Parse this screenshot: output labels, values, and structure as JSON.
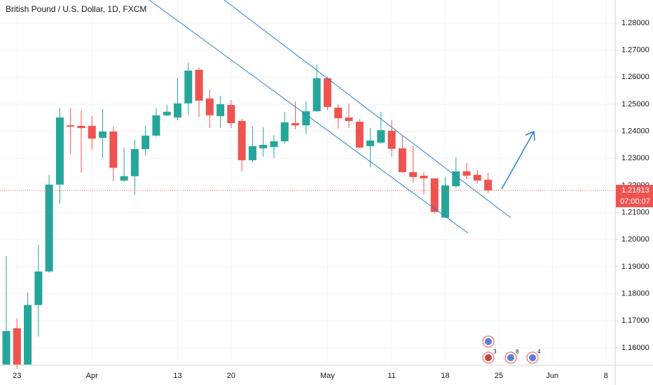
{
  "chart_data": {
    "type": "candlestick",
    "title": "British Pound / U.S. Dollar, 1D, FXCM",
    "categories": [
      null,
      "23",
      null,
      null,
      null,
      null,
      null,
      null,
      "Apr",
      null,
      null,
      null,
      null,
      null,
      null,
      null,
      "13",
      null,
      null,
      null,
      null,
      "20",
      null,
      null,
      null,
      null,
      null,
      null,
      null,
      null,
      "May",
      null,
      null,
      null,
      null,
      null,
      "11",
      null,
      null,
      null,
      null,
      "18",
      null,
      null,
      null,
      null,
      "25",
      null,
      null,
      null,
      null,
      "Jun",
      null,
      null,
      null,
      null,
      "8"
    ],
    "open": [
      1.1538,
      1.1672,
      1.1538,
      1.1758,
      1.1882,
      1.2203,
      1.2422,
      1.242,
      1.242,
      1.2376,
      1.2399,
      1.2218,
      1.2234,
      1.2334,
      1.2384,
      1.2459,
      1.2451,
      1.2503,
      1.2627,
      1.2521,
      1.2456,
      1.2497,
      1.2438,
      1.2293,
      1.2337,
      1.2342,
      1.2363,
      1.243,
      1.2422,
      1.2474,
      1.2596,
      1.2487,
      1.2451,
      1.2435,
      1.2345,
      1.2358,
      1.2402,
      1.2337,
      1.2249,
      1.2236,
      1.2226,
      1.2081,
      1.2197,
      1.2252,
      1.2239,
      1.2221,
      null,
      null,
      null,
      null,
      null,
      null,
      null,
      null,
      null,
      null,
      null
    ],
    "high": [
      1.1939,
      1.1709,
      1.1804,
      1.198,
      1.2239,
      1.2485,
      1.2485,
      1.2477,
      1.2456,
      1.2482,
      1.2417,
      1.234,
      1.2368,
      1.242,
      1.2485,
      1.2497,
      1.2596,
      1.2653,
      1.2635,
      1.2554,
      1.2531,
      1.2515,
      1.2446,
      1.2417,
      1.2415,
      1.2386,
      1.2472,
      1.251,
      1.251,
      1.2647,
      1.2601,
      1.25,
      1.2503,
      1.2446,
      1.2412,
      1.2472,
      1.2441,
      1.2384,
      1.2345,
      1.2249,
      1.2226,
      1.2231,
      1.2303,
      1.2283,
      1.2257,
      1.2247,
      null,
      null,
      null,
      null,
      null,
      null,
      null,
      null,
      null,
      null,
      null
    ],
    "low": [
      1.1538,
      1.1522,
      1.1538,
      1.1641,
      1.1877,
      1.2133,
      1.2316,
      1.2247,
      1.2332,
      1.2301,
      1.2216,
      1.2213,
      1.2166,
      1.2311,
      1.2379,
      1.2456,
      1.2441,
      1.2461,
      1.2453,
      1.2412,
      1.2412,
      1.2412,
      1.2252,
      1.2285,
      1.2306,
      1.2301,
      1.2353,
      1.2407,
      1.2389,
      1.2472,
      1.2477,
      1.241,
      1.2412,
      1.2337,
      1.2267,
      1.2353,
      1.2306,
      1.2247,
      1.221,
      1.2166,
      1.2096,
      1.2081,
      1.2192,
      1.2223,
      1.2208,
      1.2172,
      null,
      null,
      null,
      null,
      null,
      null,
      null,
      null,
      null,
      null,
      null
    ],
    "close": [
      1.1662,
      1.1538,
      1.1758,
      1.1882,
      1.2203,
      1.2451,
      1.2417,
      1.2412,
      1.2373,
      1.2399,
      1.2265,
      1.2234,
      1.2334,
      1.2384,
      1.2459,
      1.2472,
      1.2503,
      1.2624,
      1.2513,
      1.2459,
      1.25,
      1.243,
      1.2293,
      1.2345,
      1.235,
      1.2363,
      1.2433,
      1.2422,
      1.2474,
      1.2596,
      1.249,
      1.2448,
      1.2438,
      1.234,
      1.2366,
      1.2404,
      1.2335,
      1.2249,
      1.2231,
      1.2226,
      1.2102,
      1.22,
      1.2252,
      1.2236,
      1.2218,
      1.21813,
      null,
      null,
      null,
      null,
      null,
      null,
      null,
      null,
      null,
      null,
      null
    ],
    "up_color": "#26a69a",
    "down_color": "#ef5350",
    "ylim": [
      1.1535,
      1.2885
    ],
    "yticks": [
      {
        "value": 1.16,
        "label": "1.16000"
      },
      {
        "value": 1.17,
        "label": "1.17000"
      },
      {
        "value": 1.18,
        "label": "1.18000"
      },
      {
        "value": 1.19,
        "label": "1.19000"
      },
      {
        "value": 1.2,
        "label": "1.20000"
      },
      {
        "value": 1.21,
        "label": "1.21000"
      },
      {
        "value": 1.22,
        "label": "1.22000"
      },
      {
        "value": 1.23,
        "label": "1.23000"
      },
      {
        "value": 1.24,
        "label": "1.24000"
      },
      {
        "value": 1.25,
        "label": "1.25000"
      },
      {
        "value": 1.26,
        "label": "1.26000"
      },
      {
        "value": 1.27,
        "label": "1.27000"
      },
      {
        "value": 1.28,
        "label": "1.28000"
      }
    ],
    "grid": true,
    "last_price": 1.21813,
    "countdown": "07:00:07",
    "events": [
      3,
      8,
      4
    ]
  }
}
